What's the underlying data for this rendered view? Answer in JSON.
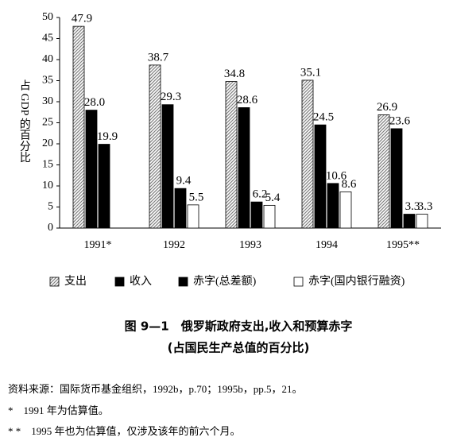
{
  "chart_data": {
    "type": "bar",
    "title": "图 9—1　俄罗斯政府支出,收入和预算赤字",
    "subtitle": "(占国民生产总值的百分比)",
    "y_label": "占 GDP 的百分比",
    "categories": [
      "1991*",
      "1992",
      "1993",
      "1994",
      "1995**"
    ],
    "series": [
      {
        "name": "支出",
        "color": "#808080",
        "hatch": true,
        "values": [
          47.9,
          38.7,
          34.8,
          35.1,
          26.9
        ],
        "value_labels": [
          "47.9",
          "38.7",
          "34.8",
          "35.1",
          "26.9"
        ]
      },
      {
        "name": "收入",
        "color": "#000000",
        "hatch": false,
        "values": [
          28.0,
          29.3,
          28.6,
          24.5,
          23.6
        ],
        "value_labels": [
          "28.0",
          "29.3",
          "28.6",
          "24.5",
          "23.6"
        ]
      },
      {
        "name": "赤字(总差额)",
        "color": "#000000",
        "hatch": false,
        "values": [
          19.9,
          9.4,
          6.2,
          10.6,
          3.3
        ],
        "value_labels": [
          "19.9",
          "9.4",
          "6.2",
          "10.6",
          "3.3"
        ]
      },
      {
        "name": "赤字(国内银行融资)",
        "color": "#ffffff",
        "hatch": false,
        "values": [
          null,
          5.5,
          5.4,
          8.6,
          3.3
        ],
        "value_labels": [
          null,
          "5.5",
          "5.4",
          "8.6",
          "3.3"
        ]
      }
    ],
    "ylim": [
      0,
      50
    ],
    "yticks": [
      0,
      5,
      10,
      15,
      20,
      25,
      30,
      35,
      40,
      45,
      50
    ],
    "notes": [
      "资料来源：国际货币基金组织，1992b，p.70；1995b，pp.5，21。",
      "*　1991 年为估算值。",
      "*  *　1995 年也为估算值，仅涉及该年的前六个月。"
    ]
  }
}
